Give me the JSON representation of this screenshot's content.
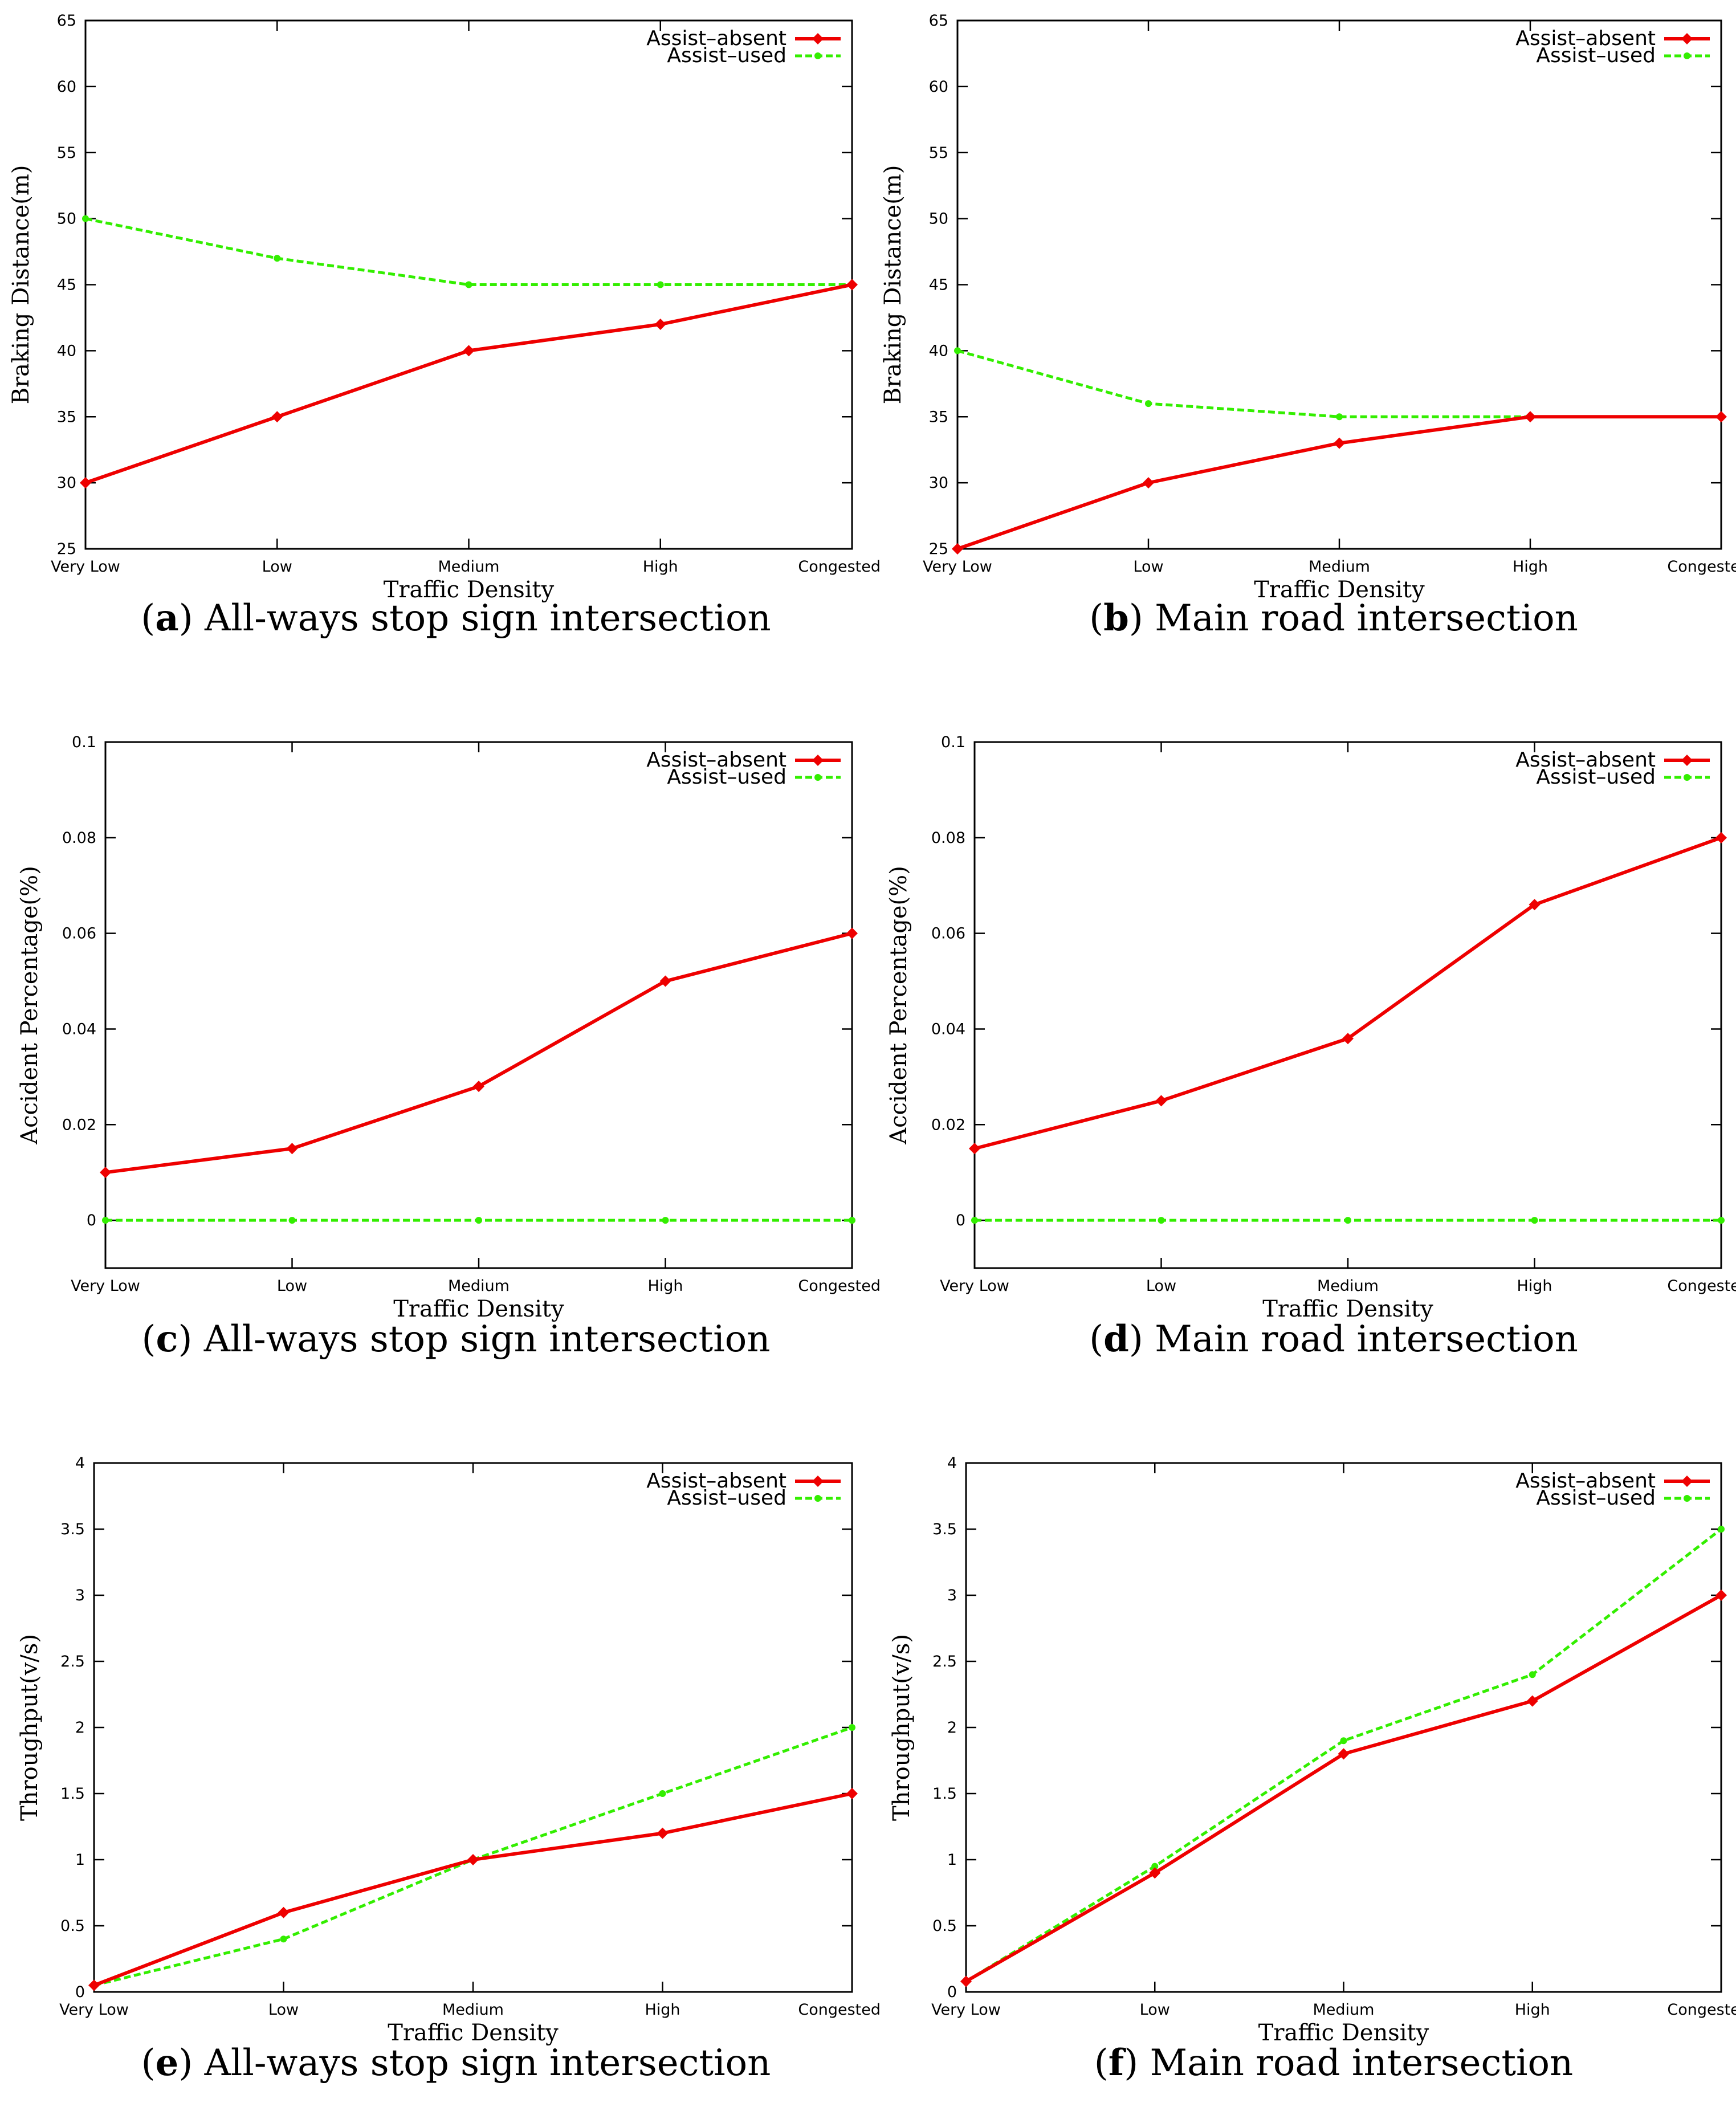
{
  "legend": {
    "absent": "Assist–absent",
    "used": "Assist–used"
  },
  "colors": {
    "absent": "#ee0000",
    "used": "#33ee00"
  },
  "chart_data": [
    {
      "id": "a",
      "type": "line",
      "caption_label": "(a)",
      "caption_text": "All-ways stop sign intersection",
      "categories": [
        "Very Low",
        "Low",
        "Medium",
        "High",
        "Congested"
      ],
      "xlabel": "Traffic Density",
      "ylabel": "Braking Distance(m)",
      "ylim": [
        25,
        65
      ],
      "yticks": [
        "25",
        "30",
        "35",
        "40",
        "45",
        "50",
        "55",
        "60",
        "65"
      ],
      "legend_position": "top-right",
      "series": [
        {
          "name": "Assist–absent",
          "values": [
            30,
            35,
            40,
            42,
            45
          ]
        },
        {
          "name": "Assist–used",
          "values": [
            50,
            47,
            45,
            45,
            45
          ]
        }
      ]
    },
    {
      "id": "b",
      "type": "line",
      "caption_label": "(b)",
      "caption_text": "Main road intersection",
      "categories": [
        "Very Low",
        "Low",
        "Medium",
        "High",
        "Congested"
      ],
      "xlabel": "Traffic Density",
      "ylabel": "Braking Distance(m)",
      "ylim": [
        25,
        65
      ],
      "yticks": [
        "25",
        "30",
        "35",
        "40",
        "45",
        "50",
        "55",
        "60",
        "65"
      ],
      "legend_position": "top-right",
      "series": [
        {
          "name": "Assist–absent",
          "values": [
            25,
            30,
            33,
            35,
            35
          ]
        },
        {
          "name": "Assist–used",
          "values": [
            40,
            36,
            35,
            35,
            35
          ]
        }
      ]
    },
    {
      "id": "c",
      "type": "line",
      "caption_label": "(c)",
      "caption_text": "All-ways stop sign intersection",
      "categories": [
        "Very Low",
        "Low",
        "Medium",
        "High",
        "Congested"
      ],
      "xlabel": "Traffic Density",
      "ylabel": "Accident Percentage(%)",
      "ylim": [
        -0.01,
        0.1
      ],
      "yticks": [
        "0",
        "0.02",
        "0.04",
        "0.06",
        "0.08",
        "0.1"
      ],
      "legend_position": "top-right",
      "series": [
        {
          "name": "Assist–absent",
          "values": [
            0.01,
            0.015,
            0.028,
            0.05,
            0.06
          ]
        },
        {
          "name": "Assist–used",
          "values": [
            0,
            0,
            0,
            0,
            0
          ]
        }
      ]
    },
    {
      "id": "d",
      "type": "line",
      "caption_label": "(d)",
      "caption_text": "Main road intersection",
      "categories": [
        "Very Low",
        "Low",
        "Medium",
        "High",
        "Congested"
      ],
      "xlabel": "Traffic Density",
      "ylabel": "Accident Percentage(%)",
      "ylim": [
        -0.01,
        0.1
      ],
      "yticks": [
        "0",
        "0.02",
        "0.04",
        "0.06",
        "0.08",
        "0.1"
      ],
      "legend_position": "top-right",
      "series": [
        {
          "name": "Assist–absent",
          "values": [
            0.015,
            0.025,
            0.038,
            0.066,
            0.08
          ]
        },
        {
          "name": "Assist–used",
          "values": [
            0,
            0,
            0,
            0,
            0
          ]
        }
      ]
    },
    {
      "id": "e",
      "type": "line",
      "caption_label": "(e)",
      "caption_text": "All-ways stop sign intersection",
      "categories": [
        "Very Low",
        "Low",
        "Medium",
        "High",
        "Congested"
      ],
      "xlabel": "Traffic Density",
      "ylabel": "Throughput(v/s)",
      "ylim": [
        0,
        4
      ],
      "yticks": [
        "0",
        "0.5",
        "1",
        "1.5",
        "2",
        "2.5",
        "3",
        "3.5",
        "4"
      ],
      "legend_position": "top-right",
      "series": [
        {
          "name": "Assist–absent",
          "values": [
            0.05,
            0.6,
            1.0,
            1.2,
            1.5
          ]
        },
        {
          "name": "Assist–used",
          "values": [
            0.05,
            0.4,
            1.0,
            1.5,
            2.0
          ]
        }
      ]
    },
    {
      "id": "f",
      "type": "line",
      "caption_label": "(f)",
      "caption_text": "Main road intersection",
      "categories": [
        "Very Low",
        "Low",
        "Medium",
        "High",
        "Congested"
      ],
      "xlabel": "Traffic Density",
      "ylabel": "Throughput(v/s)",
      "ylim": [
        0,
        4
      ],
      "yticks": [
        "0",
        "0.5",
        "1",
        "1.5",
        "2",
        "2.5",
        "3",
        "3.5",
        "4"
      ],
      "legend_position": "top-right",
      "series": [
        {
          "name": "Assist–absent",
          "values": [
            0.08,
            0.9,
            1.8,
            2.2,
            3.0
          ]
        },
        {
          "name": "Assist–used",
          "values": [
            0.08,
            0.95,
            1.9,
            2.4,
            3.5
          ]
        }
      ]
    }
  ]
}
